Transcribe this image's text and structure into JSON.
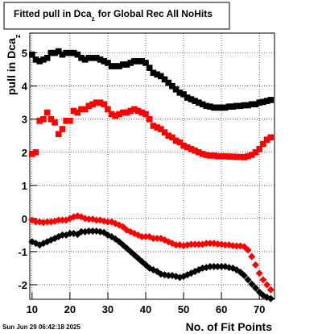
{
  "chart_data": {
    "type": "scatter",
    "title": [
      "Fitted pull in Dca",
      "z",
      "for Global Rec All NoHits"
    ],
    "y_label": [
      "pull in Dca",
      "z"
    ],
    "x_label": "No. of Fit Points",
    "timestamp": "Sun Jun 29 06:42:18 2025",
    "x": [
      10,
      11,
      12,
      13,
      14,
      15,
      16,
      17,
      18,
      19,
      20,
      21,
      22,
      23,
      24,
      25,
      26,
      27,
      28,
      29,
      30,
      31,
      32,
      33,
      34,
      35,
      36,
      37,
      38,
      39,
      40,
      41,
      42,
      43,
      44,
      45,
      46,
      47,
      48,
      49,
      50,
      51,
      52,
      53,
      54,
      55,
      56,
      57,
      58,
      59,
      60,
      61,
      62,
      63,
      64,
      65,
      66,
      67,
      68,
      69,
      70,
      71,
      72,
      73
    ],
    "series": [
      {
        "color": "#000000",
        "marker": "square",
        "values": [
          4.95,
          4.8,
          4.75,
          4.8,
          4.85,
          5.0,
          5.0,
          5.05,
          4.95,
          5.0,
          5.0,
          5.0,
          4.95,
          4.85,
          4.8,
          4.85,
          4.85,
          4.85,
          4.8,
          4.75,
          4.7,
          4.6,
          4.6,
          4.6,
          4.65,
          4.65,
          4.7,
          4.75,
          4.75,
          4.75,
          4.7,
          4.55,
          4.4,
          4.35,
          4.3,
          4.2,
          4.1,
          4.0,
          3.9,
          3.8,
          3.75,
          3.65,
          3.6,
          3.55,
          3.5,
          3.45,
          3.4,
          3.38,
          3.35,
          3.35,
          3.35,
          3.35,
          3.38,
          3.38,
          3.4,
          3.4,
          3.42,
          3.42,
          3.45,
          3.45,
          3.5,
          3.52,
          3.55,
          3.58
        ]
      },
      {
        "color": "#ff0000",
        "marker": "square",
        "values": [
          1.95,
          2.0,
          2.95,
          3.0,
          3.2,
          3.0,
          2.9,
          2.55,
          2.7,
          2.95,
          2.95,
          3.25,
          3.2,
          3.3,
          3.3,
          3.4,
          3.45,
          3.5,
          3.5,
          3.45,
          3.3,
          3.15,
          3.1,
          3.15,
          3.2,
          3.2,
          3.25,
          3.3,
          3.25,
          3.2,
          3.15,
          3.0,
          2.8,
          2.75,
          2.7,
          2.6,
          2.5,
          2.45,
          2.35,
          2.3,
          2.2,
          2.15,
          2.1,
          2.05,
          2.0,
          1.95,
          1.92,
          1.9,
          1.9,
          1.88,
          1.88,
          1.88,
          1.87,
          1.87,
          1.86,
          1.86,
          1.85,
          1.88,
          1.92,
          2.0,
          2.1,
          2.25,
          2.38,
          2.45
        ]
      },
      {
        "color": "#ff0000",
        "marker": "diamond",
        "values": [
          -0.05,
          -0.1,
          -0.1,
          -0.12,
          -0.1,
          -0.1,
          -0.08,
          -0.05,
          -0.05,
          -0.05,
          0.0,
          0.05,
          0.08,
          0.05,
          0.0,
          -0.02,
          -0.02,
          -0.05,
          -0.05,
          -0.08,
          -0.1,
          -0.1,
          -0.15,
          -0.2,
          -0.25,
          -0.35,
          -0.4,
          -0.45,
          -0.5,
          -0.55,
          -0.55,
          -0.55,
          -0.6,
          -0.6,
          -0.6,
          -0.65,
          -0.7,
          -0.75,
          -0.8,
          -0.8,
          -0.82,
          -0.8,
          -0.78,
          -0.78,
          -0.78,
          -0.78,
          -0.75,
          -0.75,
          -0.75,
          -0.77,
          -0.78,
          -0.8,
          -0.8,
          -0.82,
          -0.83,
          -0.83,
          -0.85,
          -0.95,
          -1.15,
          -1.4,
          -1.65,
          -1.85,
          -2.0,
          -2.15
        ]
      },
      {
        "color": "#000000",
        "marker": "diamond",
        "values": [
          -0.7,
          -0.75,
          -0.8,
          -0.75,
          -0.7,
          -0.65,
          -0.6,
          -0.55,
          -0.5,
          -0.5,
          -0.45,
          -0.45,
          -0.48,
          -0.4,
          -0.4,
          -0.38,
          -0.38,
          -0.38,
          -0.4,
          -0.42,
          -0.5,
          -0.55,
          -0.62,
          -0.7,
          -0.8,
          -0.9,
          -1.0,
          -1.1,
          -1.2,
          -1.3,
          -1.4,
          -1.5,
          -1.55,
          -1.6,
          -1.68,
          -1.7,
          -1.72,
          -1.72,
          -1.75,
          -1.78,
          -1.75,
          -1.7,
          -1.65,
          -1.6,
          -1.55,
          -1.5,
          -1.48,
          -1.45,
          -1.45,
          -1.45,
          -1.45,
          -1.45,
          -1.48,
          -1.5,
          -1.55,
          -1.62,
          -1.72,
          -1.85,
          -1.98,
          -2.1,
          -2.22,
          -2.32,
          -2.38,
          -2.42
        ]
      }
    ],
    "xlim": [
      9.4,
      74
    ],
    "ylim": [
      -2.44,
      5.6
    ],
    "xticks": [
      10,
      20,
      30,
      40,
      50,
      60,
      70
    ],
    "yticks": [
      -2,
      -1,
      0,
      1,
      2,
      3,
      4,
      5
    ],
    "grid": true
  }
}
